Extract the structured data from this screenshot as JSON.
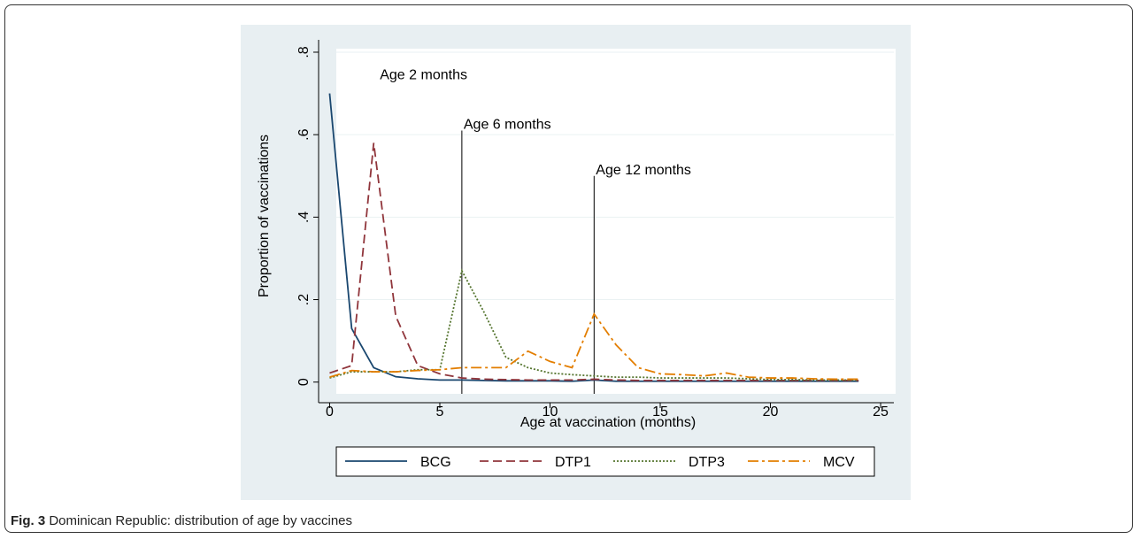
{
  "chart_data": {
    "type": "line",
    "x_label": "Age at vaccination (months)",
    "y_label": "Proportion of vaccinations",
    "x": [
      0,
      1,
      2,
      3,
      4,
      5,
      6,
      7,
      8,
      9,
      10,
      11,
      12,
      13,
      14,
      15,
      16,
      17,
      18,
      19,
      20,
      21,
      22,
      23,
      24
    ],
    "series": [
      {
        "name": "BCG",
        "color": "#1a476f",
        "style": "solid",
        "values": [
          0.7,
          0.13,
          0.035,
          0.013,
          0.008,
          0.005,
          0.005,
          0.004,
          0.003,
          0.003,
          0.003,
          0.002,
          0.005,
          0.002,
          0.002,
          0.002,
          0.002,
          0.002,
          0.002,
          0.002,
          0.002,
          0.002,
          0.002,
          0.002,
          0.002
        ]
      },
      {
        "name": "DTP1",
        "color": "#90353b",
        "style": "dashed",
        "values": [
          0.022,
          0.04,
          0.58,
          0.16,
          0.04,
          0.02,
          0.01,
          0.007,
          0.006,
          0.005,
          0.005,
          0.005,
          0.007,
          0.005,
          0.004,
          0.004,
          0.004,
          0.004,
          0.004,
          0.004,
          0.004,
          0.004,
          0.004,
          0.004,
          0.004
        ]
      },
      {
        "name": "DTP3",
        "color": "#55752f",
        "style": "dotted",
        "values": [
          0.01,
          0.025,
          0.025,
          0.025,
          0.03,
          0.03,
          0.27,
          0.17,
          0.06,
          0.035,
          0.022,
          0.018,
          0.015,
          0.012,
          0.012,
          0.01,
          0.01,
          0.01,
          0.01,
          0.008,
          0.006,
          0.006,
          0.005,
          0.005,
          0.005
        ]
      },
      {
        "name": "MCV",
        "color": "#e37e00",
        "style": "dashdot",
        "values": [
          0.012,
          0.028,
          0.025,
          0.025,
          0.028,
          0.03,
          0.035,
          0.035,
          0.035,
          0.075,
          0.05,
          0.035,
          0.165,
          0.09,
          0.035,
          0.02,
          0.018,
          0.015,
          0.022,
          0.012,
          0.01,
          0.01,
          0.008,
          0.007,
          0.007
        ]
      }
    ],
    "annotations": [
      {
        "text": "Age 2 months",
        "x": 2.2,
        "y": 0.73,
        "line": false
      },
      {
        "text": "Age 6 months",
        "x": 6,
        "y": 0.61,
        "line": true
      },
      {
        "text": "Age 12 months",
        "x": 12,
        "y": 0.5,
        "line": true
      }
    ],
    "xlim": [
      -0.5,
      25.6
    ],
    "ylim": [
      -0.05,
      0.83
    ],
    "xticks": [
      0,
      5,
      10,
      15,
      20,
      25
    ],
    "yticks": [
      0,
      {
        "value": 0.2,
        "label": ".2"
      },
      {
        "value": 0.4,
        "label": ".4"
      },
      {
        "value": 0.6,
        "label": ".6"
      },
      {
        "value": 0.8,
        "label": ".8"
      }
    ],
    "grid": true,
    "legend": "bottom"
  },
  "figure_caption": {
    "label": "Fig. 3",
    "text": "Dominican Republic: distribution of age by vaccines"
  }
}
